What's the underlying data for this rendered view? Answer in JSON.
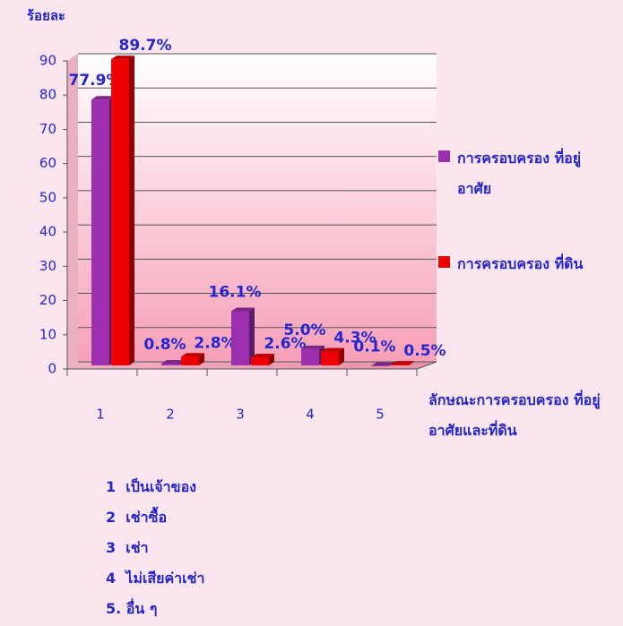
{
  "chart_data": {
    "type": "bar",
    "y_label": "ร้อยละ",
    "x_label": "ลักษณะการครอบครอง ที่อยู่อาศัยและที่ดิน",
    "categories": [
      "1",
      "2",
      "3",
      "4",
      "5"
    ],
    "series": [
      {
        "name": "การครอบครอง ที่อยู่อาศัย",
        "color": "#9b2fae",
        "values": [
          77.9,
          0.8,
          16.1,
          5.0,
          0.1
        ],
        "value_labels": [
          "77.9%",
          "0.8%",
          "16.1%",
          "5.0%",
          "0.1%"
        ]
      },
      {
        "name": "การครอบครอง ที่ดิน",
        "color": "#ee0000",
        "values": [
          89.7,
          2.8,
          2.6,
          4.3,
          0.5
        ],
        "value_labels": [
          "89.7%",
          "2.8%",
          "2.6%",
          "4.3%",
          "0.5%"
        ]
      }
    ],
    "ylim": [
      0,
      90
    ],
    "yticks": [
      0,
      10,
      20,
      30,
      40,
      50,
      60,
      70,
      80,
      90
    ],
    "grid": true,
    "notes": [
      "1  เป็นเจ้าของ",
      "2  เช่าซื้อ",
      "3  เช่า",
      "4  ไม่เสียค่าเช่า",
      "5. อื่น ๆ"
    ]
  }
}
